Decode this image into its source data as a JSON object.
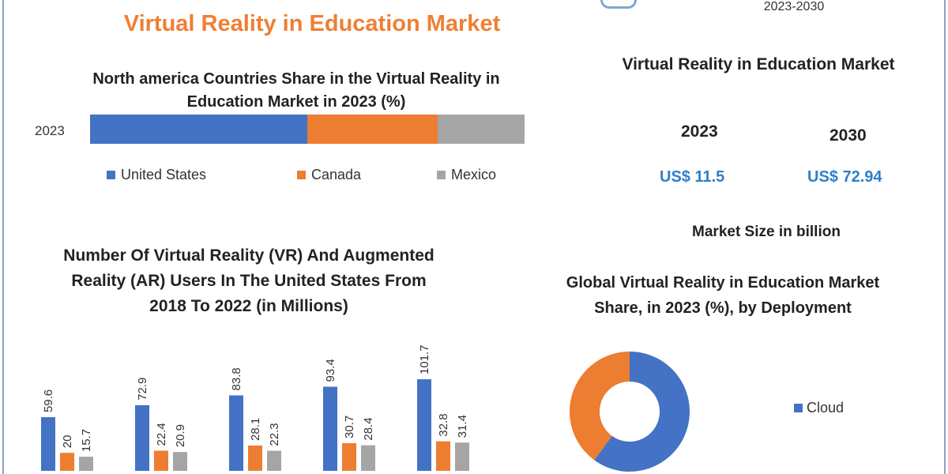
{
  "header": {
    "title": "Virtual Reality in Education Market",
    "years": "2023-2030"
  },
  "summary": {
    "title": "Virtual Reality in Education Market",
    "year_start": "2023",
    "year_end": "2030",
    "value_start": "US$ 11.5",
    "value_end": "US$ 72.94",
    "unit_note": "Market Size in billion"
  },
  "colors": {
    "blue": "#4472c4",
    "orange": "#ed7d31",
    "gray": "#a5a5a5",
    "title_orange": "#ef7f33",
    "value_blue": "#2f7fc8"
  },
  "chart_data": [
    {
      "type": "bar",
      "stacked": true,
      "orientation": "horizontal",
      "title": "North america Countries Share in the  Virtual Reality in Education Market in 2023 (%)",
      "categories": [
        "2023"
      ],
      "series": [
        {
          "name": "United States",
          "values": [
            50
          ]
        },
        {
          "name": "Canada",
          "values": [
            30
          ]
        },
        {
          "name": "Mexico",
          "values": [
            20
          ]
        }
      ],
      "legend": "bottom"
    },
    {
      "type": "bar",
      "title": "Number Of Virtual Reality (VR) And Augmented Reality (AR) Users In The United States From 2018 To 2022 (in Millions)",
      "series": [
        {
          "values": [
            59.6,
            72.9,
            83.8,
            93.4,
            101.7
          ]
        },
        {
          "values": [
            20,
            22.4,
            28.1,
            30.7,
            32.8
          ]
        },
        {
          "values": [
            15.7,
            20.9,
            22.3,
            28.4,
            31.4
          ]
        }
      ],
      "data_labels": true
    },
    {
      "type": "pie",
      "donut": true,
      "title": "Global Virtual Reality in Education Market Share, in 2023 (%), by Deployment",
      "series": [
        {
          "name": "Cloud",
          "value": 60
        },
        {
          "value": 40
        }
      ],
      "legend": "right"
    }
  ]
}
